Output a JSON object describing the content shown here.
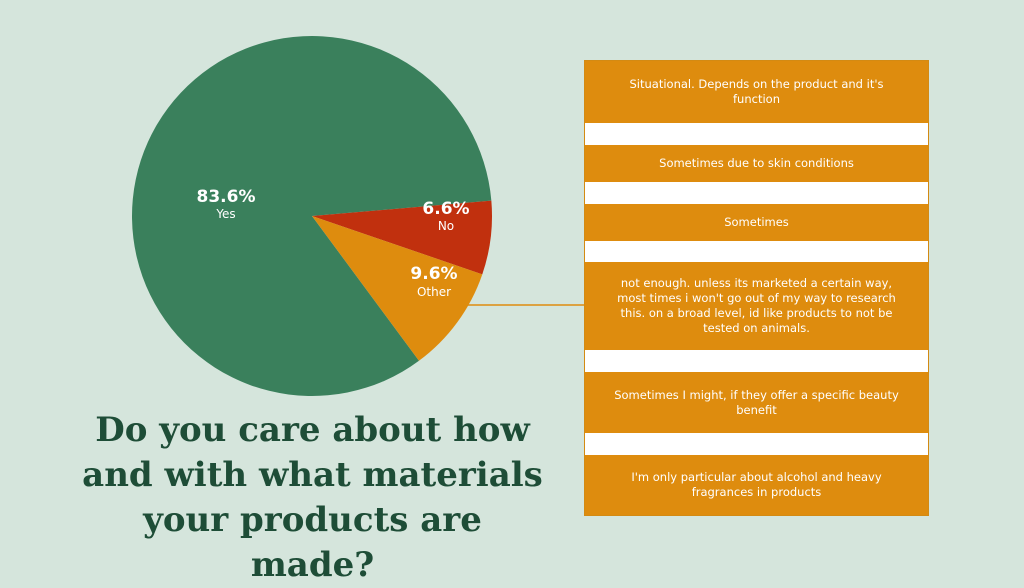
{
  "chart_data": {
    "type": "pie",
    "title": "Do you care about how and with what materials your products are made?",
    "slices": [
      {
        "label": "Yes",
        "value": 83.6,
        "display": "83.6%",
        "color": "#3a805c"
      },
      {
        "label": "No",
        "value": 6.6,
        "display": "6.6%",
        "color": "#c1300e"
      },
      {
        "label": "Other",
        "value": 9.6,
        "display": "9.6%",
        "color": "#de8c0e"
      }
    ]
  },
  "other_responses": [
    "Situational. Depends on the product and it's function",
    "Sometimes due to skin conditions",
    "Sometimes",
    "not enough. unless its marketed a certain way, most times i won't go out of my way to research this. on a broad level, id like products to not be tested on animals.",
    "Sometimes I might, if they offer a specific beauty benefit",
    "I'm only particular about alcohol and heavy fragrances in products"
  ]
}
